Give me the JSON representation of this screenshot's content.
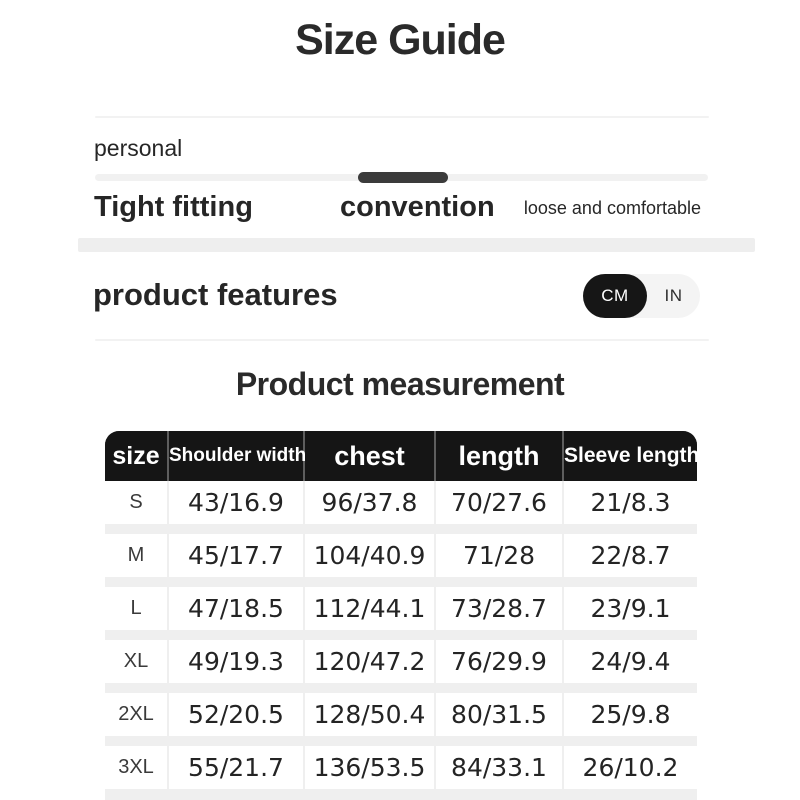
{
  "page": {
    "title": "Size Guide"
  },
  "fit_slider": {
    "label": "personal",
    "option_left": "Tight fitting",
    "option_center": "convention",
    "option_right": "loose and comfortable",
    "selected": "convention"
  },
  "features": {
    "heading": "product features",
    "unit_toggle": {
      "selected": "CM",
      "option_cm": "CM",
      "option_in": "IN"
    }
  },
  "measurement": {
    "title": "Product measurement"
  },
  "table": {
    "columns": [
      "size",
      "Shoulder width",
      "chest",
      "length",
      "Sleeve length"
    ],
    "rows": [
      [
        "S",
        "43/16.9",
        "96/37.8",
        "70/27.6",
        "21/8.3"
      ],
      [
        "M",
        "45/17.7",
        "104/40.9",
        "71/28",
        "22/8.7"
      ],
      [
        "L",
        "47/18.5",
        "112/44.1",
        "73/28.7",
        "23/9.1"
      ],
      [
        "XL",
        "49/19.3",
        "120/47.2",
        "76/29.9",
        "24/9.4"
      ],
      [
        "2XL",
        "52/20.5",
        "128/50.4",
        "80/31.5",
        "25/9.8"
      ],
      [
        "3XL",
        "55/21.7",
        "136/53.5",
        "84/33.1",
        "26/10.2"
      ]
    ]
  },
  "colors": {
    "text": "#262626",
    "table_header_bg": "#151515",
    "slider_handle": "#3b3b3b",
    "divider": "#eeeeee",
    "toggle_active_bg": "#161616",
    "toggle_bg": "#f4f4f4"
  }
}
